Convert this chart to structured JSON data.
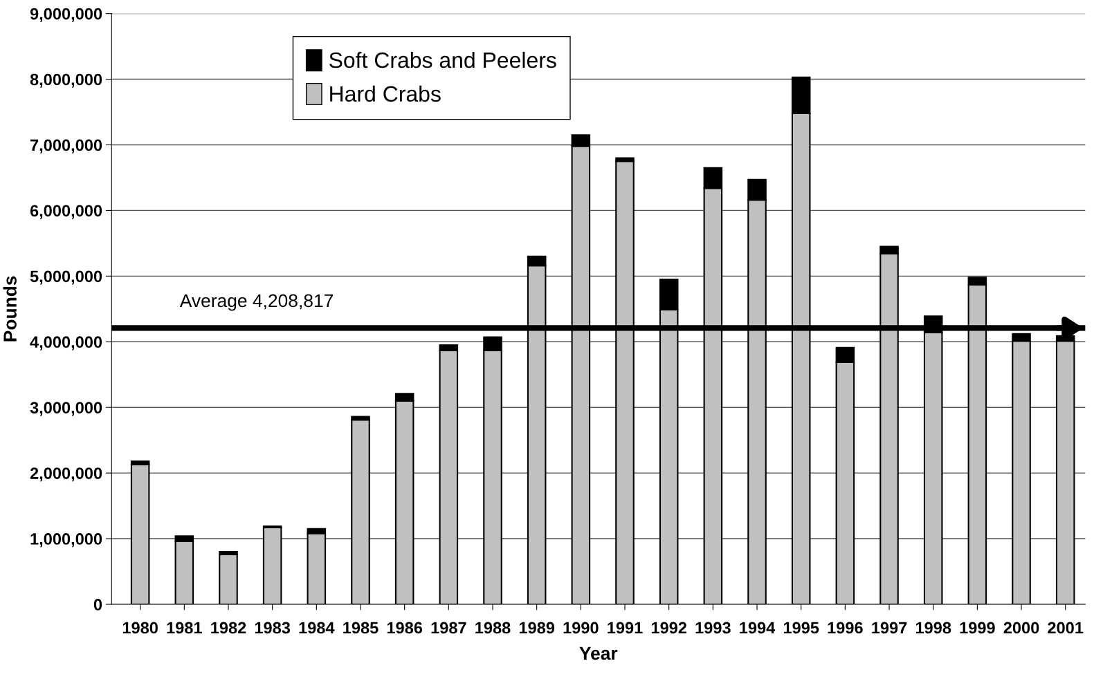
{
  "chart_data": {
    "type": "bar",
    "stacked": true,
    "xlabel": "Year",
    "ylabel": "Pounds",
    "categories": [
      "1980",
      "1981",
      "1982",
      "1983",
      "1984",
      "1985",
      "1986",
      "1987",
      "1988",
      "1989",
      "1990",
      "1991",
      "1992",
      "1993",
      "1994",
      "1995",
      "1996",
      "1997",
      "1998",
      "1999",
      "2000",
      "2001"
    ],
    "series": [
      {
        "name": "Hard Crabs",
        "color": "#c0c0c0",
        "values": [
          2130000,
          960000,
          760000,
          1170000,
          1080000,
          2810000,
          3100000,
          3870000,
          3870000,
          5160000,
          6980000,
          6750000,
          4490000,
          6340000,
          6160000,
          7480000,
          3690000,
          5340000,
          4140000,
          4870000,
          4010000,
          4010000
        ]
      },
      {
        "name": "Soft Crabs and Peelers",
        "color": "#000000",
        "values": [
          50000,
          80000,
          40000,
          20000,
          70000,
          50000,
          110000,
          80000,
          200000,
          140000,
          170000,
          50000,
          460000,
          310000,
          310000,
          550000,
          220000,
          110000,
          250000,
          110000,
          110000,
          80000
        ]
      }
    ],
    "ylim": [
      0,
      9000000
    ],
    "yticks": [
      0,
      {
        "value": 1000000,
        "label": "1,000,000"
      },
      {
        "value": 2000000,
        "label": "2,000,000"
      },
      {
        "value": 3000000,
        "label": "3,000,000"
      },
      {
        "value": 4000000,
        "label": "4,000,000"
      },
      {
        "value": 5000000,
        "label": "5,000,000"
      },
      {
        "value": 6000000,
        "label": "6,000,000"
      },
      {
        "value": 7000000,
        "label": "7,000,000"
      },
      {
        "value": 8000000,
        "label": "8,000,000"
      },
      {
        "value": 9000000,
        "label": "9,000,000"
      }
    ],
    "ref_lines": [
      {
        "axis": "y",
        "value": 4208817,
        "label": "Average 4,208,817",
        "color": "#000000",
        "line_style": "solid"
      }
    ],
    "grid": "y",
    "legend": "top left"
  }
}
